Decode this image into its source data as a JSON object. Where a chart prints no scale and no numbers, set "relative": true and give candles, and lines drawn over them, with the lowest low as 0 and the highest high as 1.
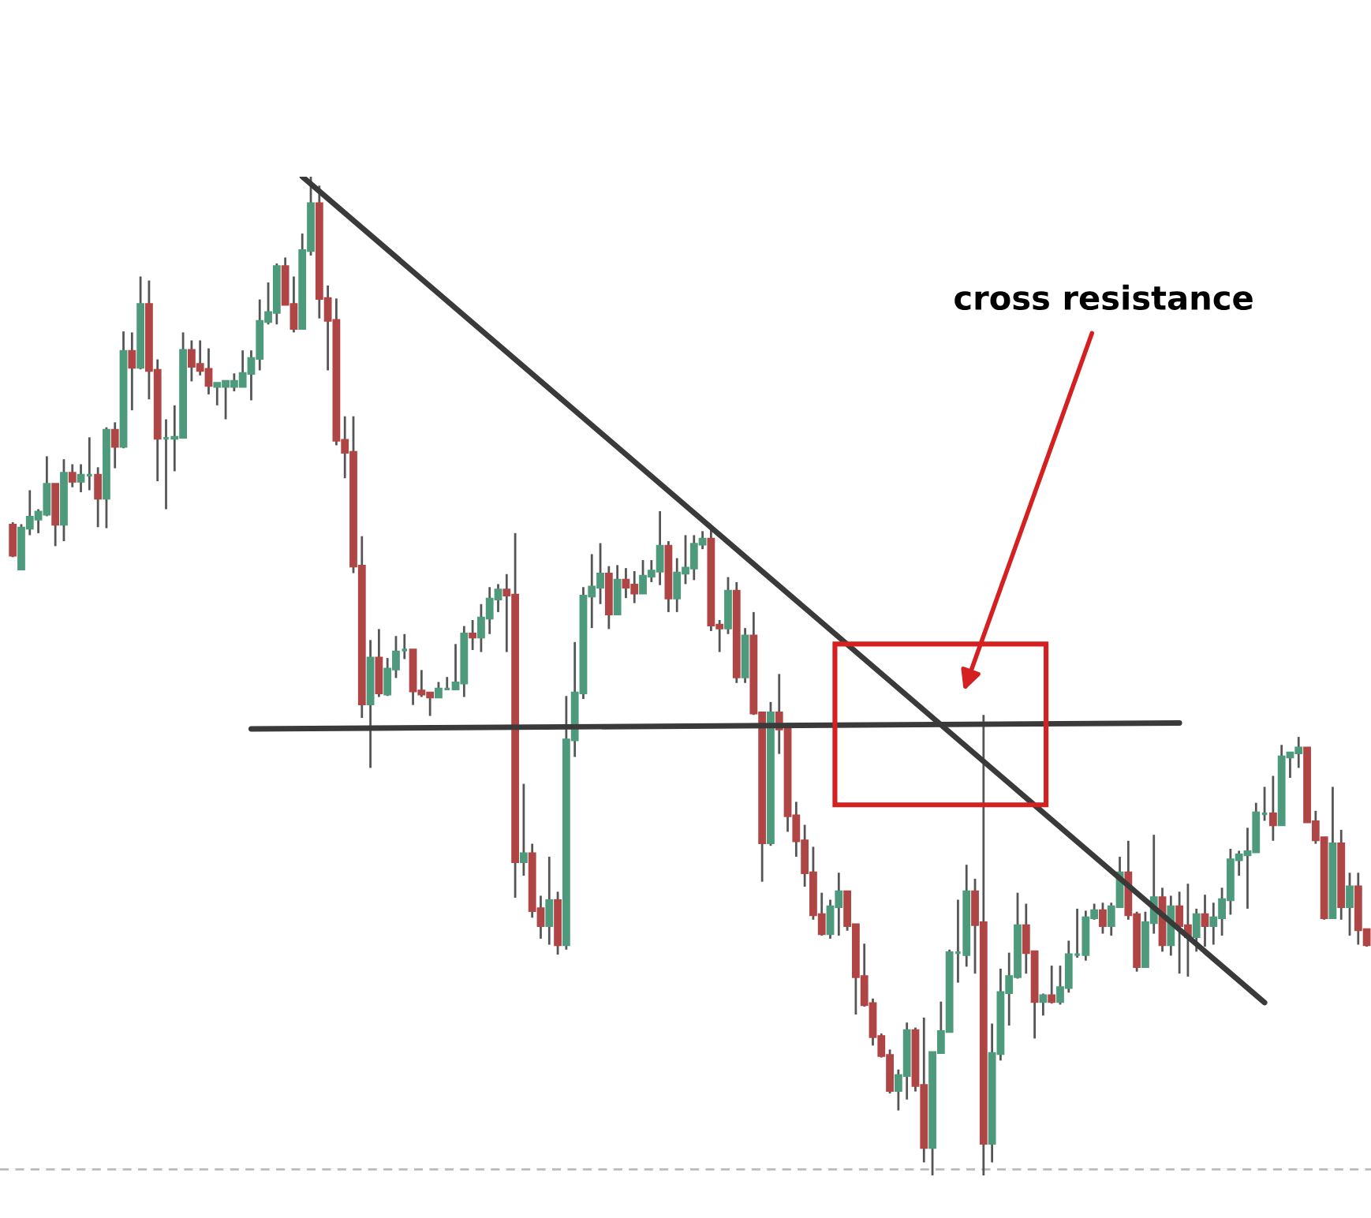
{
  "chart_data": {
    "type": "candlestick",
    "relative": true,
    "colors": [
      "#b04545",
      "#4e9a7c",
      "#4e9a7c",
      "#4e9a7c",
      "#4e9a7c",
      "#b04545",
      "#4e9a7c",
      "#b04545",
      "#4e9a7c",
      "#4e9a7c",
      "#b04545",
      "#4e9a7c",
      "#b04545",
      "#4e9a7c",
      "#b04545",
      "#4e9a7c",
      "#b04545",
      "#b04545",
      "#4e9a7c",
      "#4e9a7c",
      "#4e9a7c",
      "#b04545",
      "#b04545",
      "#b04545",
      "#4e9a7c",
      "#4e9a7c",
      "#4e9a7c",
      "#4e9a7c",
      "#4e9a7c",
      "#4e9a7c",
      "#4e9a7c",
      "#4e9a7c",
      "#b04545",
      "#b04545",
      "#4e9a7c",
      "#4e9a7c",
      "#b04545",
      "#b04545",
      "#b04545",
      "#b04545",
      "#b04545",
      "#b04545",
      "#4e9a7c",
      "#b04545",
      "#4e9a7c",
      "#4e9a7c",
      "#4e9a7c",
      "#b04545",
      "#b04545",
      "#b04545",
      "#4e9a7c",
      "#4e9a7c",
      "#4e9a7c",
      "#4e9a7c",
      "#b04545",
      "#4e9a7c",
      "#4e9a7c",
      "#4e9a7c",
      "#b04545",
      "#b04545",
      "#4e9a7c",
      "#b04545",
      "#b04545",
      "#4e9a7c",
      "#b04545",
      "#4e9a7c",
      "#4e9a7c",
      "#4e9a7c",
      "#4e9a7c",
      "#4e9a7c",
      "#b04545",
      "#4e9a7c",
      "#b04545",
      "#b04545",
      "#4e9a7c",
      "#4e9a7c",
      "#4e9a7c",
      "#b04545",
      "#4e9a7c",
      "#4e9a7c",
      "#4e9a7c",
      "#4e9a7c",
      "#b04545",
      "#b04545",
      "#4e9a7c",
      "#b04545",
      "#4e9a7c",
      "#b04545",
      "#b04545",
      "#4e9a7c",
      "#b04545",
      "#b04545",
      "#b04545",
      "#b04545",
      "#b04545",
      "#b04545",
      "#4e9a7c",
      "#4e9a7c",
      "#b04545",
      "#b04545",
      "#b04545",
      "#b04545",
      "#b04545",
      "#b04545",
      "#4e9a7c",
      "#4e9a7c",
      "#b04545",
      "#b04545",
      "#4e9a7c",
      "#4e9a7c",
      "#4e9a7c",
      "#4e9a7c",
      "#4e9a7c",
      "#b04545",
      "#b04545",
      "#4e9a7c",
      "#4e9a7c",
      "#4e9a7c",
      "#4e9a7c",
      "#b04545",
      "#b04545",
      "#4e9a7c",
      "#b04545",
      "#4e9a7c",
      "#4e9a7c",
      "#4e9a7c",
      "#4e9a7c",
      "#4e9a7c",
      "#b04545",
      "#4e9a7c",
      "#4e9a7c",
      "#b04545",
      "#b04545",
      "#4e9a7c",
      "#4e9a7c",
      "#b04545",
      "#4e9a7c",
      "#b04545",
      "#b04545",
      "#4e9a7c",
      "#b04545",
      "#4e9a7c",
      "#4e9a7c",
      "#4e9a7c",
      "#4e9a7c",
      "#4e9a7c",
      "#4e9a7c",
      "#4e9a7c",
      "#b04545",
      "#4e9a7c",
      "#4e9a7c",
      "#4e9a7c",
      "#b04545",
      "#b04545",
      "#b04545",
      "#4e9a7c",
      "#b04545",
      "#4e9a7c",
      "#b04545",
      "#b04545"
    ],
    "categories": [
      null,
      null,
      null,
      null,
      null,
      null,
      null,
      null,
      null,
      null,
      null,
      null,
      null,
      null,
      null,
      null,
      null,
      null,
      null,
      null,
      null,
      null,
      null,
      null,
      null,
      null,
      null,
      null,
      null,
      null,
      null,
      null,
      null,
      null,
      null,
      null,
      null,
      null,
      null,
      null,
      null,
      null,
      null,
      null,
      null,
      null,
      null,
      null,
      null,
      null,
      null,
      null,
      null,
      null,
      null,
      null,
      null,
      null,
      null,
      null,
      null,
      null,
      null,
      null,
      null,
      null,
      null,
      null,
      null,
      null,
      null,
      null,
      null,
      null,
      null,
      null,
      null,
      null,
      null,
      null,
      null,
      null,
      null,
      null,
      null,
      null,
      null,
      null,
      null,
      null,
      null,
      null,
      null,
      null,
      null,
      null,
      null,
      null,
      null,
      null,
      null,
      null,
      null,
      null,
      null,
      null,
      null,
      null,
      null,
      null,
      null,
      null,
      null,
      null,
      null,
      null,
      null,
      null,
      null,
      null,
      null,
      null,
      null,
      null,
      null,
      null,
      null,
      null,
      null,
      null,
      null,
      null,
      null,
      null,
      null,
      null,
      null,
      null,
      null,
      null,
      null,
      null,
      null,
      null,
      null,
      null,
      null,
      null,
      null,
      null,
      null,
      null,
      null,
      null,
      null,
      null,
      null,
      null,
      null,
      null
    ],
    "ohlc": [
      [
        0.651,
        0.654,
        0.619,
        0.621
      ],
      [
        0.607,
        0.652,
        0.607,
        0.648
      ],
      [
        0.648,
        0.686,
        0.641,
        0.659
      ],
      [
        0.657,
        0.667,
        0.643,
        0.664
      ],
      [
        0.662,
        0.72,
        0.66,
        0.692
      ],
      [
        0.692,
        0.692,
        0.63,
        0.652
      ],
      [
        0.652,
        0.717,
        0.635,
        0.703
      ],
      [
        0.703,
        0.712,
        0.689,
        0.695
      ],
      [
        0.695,
        0.712,
        0.684,
        0.701
      ],
      [
        0.701,
        0.739,
        0.686,
        0.701
      ],
      [
        0.701,
        0.709,
        0.649,
        0.678
      ],
      [
        0.678,
        0.749,
        0.648,
        0.746
      ],
      [
        0.746,
        0.754,
        0.708,
        0.73
      ],
      [
        0.73,
        0.845,
        0.728,
        0.825
      ],
      [
        0.825,
        0.844,
        0.766,
        0.809
      ],
      [
        0.809,
        0.9,
        0.807,
        0.872
      ],
      [
        0.872,
        0.896,
        0.777,
        0.806
      ],
      [
        0.806,
        0.817,
        0.695,
        0.738
      ],
      [
        0.738,
        0.757,
        0.667,
        0.738
      ],
      [
        0.738,
        0.771,
        0.705,
        0.739
      ],
      [
        0.739,
        0.844,
        0.739,
        0.826
      ],
      [
        0.826,
        0.836,
        0.795,
        0.81
      ],
      [
        0.812,
        0.836,
        0.801,
        0.806
      ],
      [
        0.807,
        0.828,
        0.782,
        0.791
      ],
      [
        0.79,
        0.793,
        0.771,
        0.793
      ],
      [
        0.79,
        0.795,
        0.757,
        0.795
      ],
      [
        0.79,
        0.803,
        0.785,
        0.795
      ],
      [
        0.79,
        0.826,
        0.79,
        0.803
      ],
      [
        0.803,
        0.826,
        0.776,
        0.818
      ],
      [
        0.818,
        0.877,
        0.806,
        0.855
      ],
      [
        0.855,
        0.894,
        0.852,
        0.864
      ],
      [
        0.864,
        0.913,
        0.852,
        0.91
      ],
      [
        0.91,
        0.919,
        0.872,
        0.872
      ],
      [
        0.872,
        0.9,
        0.844,
        0.848
      ],
      [
        0.848,
        0.943,
        0.848,
        0.926
      ],
      [
        0.926,
        1.0,
        0.921,
        0.973
      ],
      [
        0.973,
        0.991,
        0.858,
        0.878
      ],
      [
        0.878,
        0.891,
        0.806,
        0.856
      ],
      [
        0.856,
        0.878,
        0.731,
        0.736
      ],
      [
        0.736,
        0.76,
        0.698,
        0.724
      ],
      [
        0.724,
        0.76,
        0.603,
        0.61
      ],
      [
        0.61,
        0.64,
        0.458,
        0.472
      ],
      [
        0.472,
        0.536,
        0.408,
        0.518
      ],
      [
        0.518,
        0.547,
        0.479,
        0.483
      ],
      [
        0.482,
        0.518,
        0.48,
        0.507
      ],
      [
        0.507,
        0.54,
        0.498,
        0.524
      ],
      [
        0.526,
        0.542,
        0.517,
        0.526
      ],
      [
        0.526,
        0.526,
        0.471,
        0.485
      ],
      [
        0.485,
        0.506,
        0.479,
        0.482
      ],
      [
        0.483,
        0.483,
        0.46,
        0.479
      ],
      [
        0.479,
        0.494,
        0.479,
        0.487
      ],
      [
        0.487,
        0.499,
        0.487,
        0.487
      ],
      [
        0.487,
        0.532,
        0.487,
        0.493
      ],
      [
        0.493,
        0.55,
        0.479,
        0.542
      ],
      [
        0.542,
        0.556,
        0.526,
        0.539
      ],
      [
        0.539,
        0.572,
        0.524,
        0.558
      ],
      [
        0.558,
        0.589,
        0.542,
        0.577
      ],
      [
        0.577,
        0.592,
        0.564,
        0.586
      ],
      [
        0.586,
        0.602,
        0.524,
        0.581
      ],
      [
        0.581,
        0.643,
        0.278,
        0.314
      ],
      [
        0.314,
        0.392,
        0.3,
        0.322
      ],
      [
        0.322,
        0.332,
        0.258,
        0.265
      ],
      [
        0.267,
        0.28,
        0.237,
        0.25
      ],
      [
        0.25,
        0.319,
        0.231,
        0.275
      ],
      [
        0.275,
        0.284,
        0.221,
        0.231
      ],
      [
        0.231,
        0.48,
        0.226,
        0.436
      ],
      [
        0.436,
        0.534,
        0.419,
        0.483
      ],
      [
        0.483,
        0.589,
        0.477,
        0.58
      ],
      [
        0.58,
        0.622,
        0.548,
        0.589
      ],
      [
        0.589,
        0.633,
        0.572,
        0.602
      ],
      [
        0.602,
        0.61,
        0.547,
        0.562
      ],
      [
        0.562,
        0.611,
        0.562,
        0.596
      ],
      [
        0.596,
        0.608,
        0.578,
        0.589
      ],
      [
        0.591,
        0.605,
        0.573,
        0.583
      ],
      [
        0.583,
        0.616,
        0.583,
        0.6
      ],
      [
        0.6,
        0.616,
        0.594,
        0.605
      ],
      [
        0.605,
        0.665,
        0.591,
        0.63
      ],
      [
        0.63,
        0.635,
        0.564,
        0.578
      ],
      [
        0.578,
        0.618,
        0.564,
        0.603
      ],
      [
        0.603,
        0.641,
        0.592,
        0.608
      ],
      [
        0.608,
        0.641,
        0.596,
        0.632
      ],
      [
        0.632,
        0.645,
        0.627,
        0.637
      ],
      [
        0.637,
        0.648,
        0.545,
        0.551
      ],
      [
        0.551,
        0.556,
        0.524,
        0.548
      ],
      [
        0.548,
        0.599,
        0.542,
        0.585
      ],
      [
        0.585,
        0.594,
        0.493,
        0.499
      ],
      [
        0.499,
        0.548,
        0.493,
        0.54
      ],
      [
        0.54,
        0.564,
        0.461,
        0.463
      ],
      [
        0.463,
        0.463,
        0.294,
        0.333
      ],
      [
        0.333,
        0.474,
        0.33,
        0.463
      ],
      [
        0.463,
        0.502,
        0.422,
        0.447
      ],
      [
        0.447,
        0.453,
        0.344,
        0.36
      ],
      [
        0.36,
        0.374,
        0.319,
        0.335
      ],
      [
        0.335,
        0.351,
        0.289,
        0.303
      ],
      [
        0.303,
        0.329,
        0.256,
        0.261
      ],
      [
        0.261,
        0.283,
        0.24,
        0.242
      ],
      [
        0.242,
        0.276,
        0.237,
        0.269
      ],
      [
        0.269,
        0.303,
        0.24,
        0.284
      ],
      [
        0.284,
        0.284,
        0.245,
        0.25
      ],
      [
        0.251,
        0.251,
        0.161,
        0.199
      ],
      [
        0.199,
        0.232,
        0.169,
        0.171
      ],
      [
        0.172,
        0.177,
        0.13,
        0.139
      ],
      [
        0.139,
        0.142,
        0.118,
        0.12
      ],
      [
        0.12,
        0.126,
        0.082,
        0.085
      ],
      [
        0.085,
        0.106,
        0.065,
        0.1
      ],
      [
        0.1,
        0.153,
        0.076,
        0.145
      ],
      [
        0.145,
        0.148,
        0.084,
        0.09
      ],
      [
        0.09,
        0.158,
        0.013,
        0.028
      ],
      [
        0.028,
        0.123,
        0.0,
        0.123
      ],
      [
        0.123,
        0.174,
        0.122,
        0.144
      ],
      [
        0.144,
        0.226,
        0.144,
        0.223
      ],
      [
        0.223,
        0.276,
        0.193,
        0.223
      ],
      [
        0.221,
        0.311,
        0.209,
        0.284
      ],
      [
        0.284,
        0.297,
        0.202,
        0.251
      ],
      [
        0.253,
        0.461,
        0.0,
        0.032
      ],
      [
        0.032,
        0.152,
        0.013,
        0.122
      ],
      [
        0.122,
        0.207,
        0.115,
        0.183
      ],
      [
        0.183,
        0.223,
        0.15,
        0.199
      ],
      [
        0.199,
        0.283,
        0.197,
        0.25
      ],
      [
        0.25,
        0.272,
        0.202,
        0.223
      ],
      [
        0.224,
        0.224,
        0.137,
        0.174
      ],
      [
        0.174,
        0.182,
        0.16,
        0.18
      ],
      [
        0.18,
        0.21,
        0.172,
        0.174
      ],
      [
        0.174,
        0.21,
        0.171,
        0.188
      ],
      [
        0.188,
        0.235,
        0.183,
        0.221
      ],
      [
        0.221,
        0.267,
        0.218,
        0.221
      ],
      [
        0.221,
        0.265,
        0.215,
        0.258
      ],
      [
        0.258,
        0.272,
        0.256,
        0.265
      ],
      [
        0.265,
        0.273,
        0.242,
        0.25
      ],
      [
        0.25,
        0.273,
        0.24,
        0.269
      ],
      [
        0.269,
        0.319,
        0.269,
        0.303
      ],
      [
        0.303,
        0.335,
        0.256,
        0.261
      ],
      [
        0.261,
        0.264,
        0.204,
        0.209
      ],
      [
        0.209,
        0.264,
        0.209,
        0.253
      ],
      [
        0.253,
        0.341,
        0.242,
        0.278
      ],
      [
        0.278,
        0.288,
        0.224,
        0.231
      ],
      [
        0.231,
        0.28,
        0.22,
        0.269
      ],
      [
        0.269,
        0.284,
        0.202,
        0.25
      ],
      [
        0.25,
        0.292,
        0.199,
        0.239
      ],
      [
        0.239,
        0.267,
        0.224,
        0.261
      ],
      [
        0.261,
        0.281,
        0.229,
        0.25
      ],
      [
        0.25,
        0.273,
        0.231,
        0.258
      ],
      [
        0.258,
        0.288,
        0.24,
        0.276
      ],
      [
        0.276,
        0.327,
        0.261,
        0.316
      ],
      [
        0.316,
        0.325,
        0.3,
        0.321
      ],
      [
        0.321,
        0.348,
        0.267,
        0.324
      ],
      [
        0.324,
        0.373,
        0.324,
        0.363
      ],
      [
        0.362,
        0.389,
        0.355,
        0.362
      ],
      [
        0.362,
        0.4,
        0.335,
        0.351
      ],
      [
        0.351,
        0.431,
        0.351,
        0.419
      ],
      [
        0.419,
        0.423,
        0.398,
        0.423
      ],
      [
        0.423,
        0.439,
        0.408,
        0.428
      ],
      [
        0.428,
        0.428,
        0.354,
        0.354
      ],
      [
        0.354,
        0.365,
        0.332,
        0.336
      ],
      [
        0.338,
        0.338,
        0.256,
        0.258
      ],
      [
        0.258,
        0.389,
        0.258,
        0.332
      ],
      [
        0.332,
        0.346,
        0.256,
        0.269
      ],
      [
        0.269,
        0.303,
        0.24,
        0.289
      ],
      [
        0.289,
        0.303,
        0.231,
        0.246
      ],
      [
        0.246,
        0.246,
        0.229,
        0.231
      ]
    ],
    "series": [
      {
        "type": "line",
        "color": "#3a3a3a",
        "values": [
          null,
          null,
          null,
          null,
          null,
          null,
          null,
          null,
          null,
          null,
          null,
          null,
          null,
          null,
          null,
          null,
          null,
          null,
          null,
          null,
          null,
          null,
          null,
          null,
          null,
          null,
          null,
          null,
          null,
          null,
          null,
          null,
          null,
          null,
          1.0,
          null,
          null,
          null,
          null,
          null,
          null,
          null,
          null,
          null,
          null,
          null,
          null,
          null,
          null,
          null,
          null,
          null,
          null,
          null,
          null,
          null,
          null,
          null,
          null,
          null,
          null,
          null,
          null,
          null,
          null,
          null,
          null,
          null,
          null,
          null,
          null,
          null,
          null,
          null,
          null,
          null,
          null,
          null,
          null,
          null,
          null,
          null,
          null,
          null,
          null,
          null,
          null,
          null,
          null,
          null,
          null,
          null,
          null,
          null,
          null,
          null,
          null,
          null,
          null,
          null,
          null,
          null,
          null,
          null,
          null,
          null,
          null,
          null,
          null,
          null,
          null,
          null,
          null,
          null,
          null,
          null,
          null,
          null,
          null,
          null,
          null,
          null,
          null,
          null,
          null,
          null,
          null,
          null,
          null,
          null,
          null,
          null,
          null,
          null,
          null,
          null,
          null,
          null,
          null,
          null,
          null,
          null,
          null,
          null,
          null,
          null,
          null,
          0.173,
          null,
          null,
          null,
          null,
          null,
          null,
          null,
          null,
          null,
          null,
          null,
          null
        ]
      },
      {
        "type": "line",
        "color": "#3a3a3a",
        "values": [
          null,
          null,
          null,
          null,
          null,
          null,
          null,
          null,
          null,
          null,
          null,
          null,
          null,
          null,
          null,
          null,
          null,
          null,
          null,
          null,
          null,
          null,
          null,
          null,
          null,
          null,
          null,
          null,
          0.447,
          null,
          null,
          null,
          null,
          null,
          null,
          null,
          null,
          null,
          null,
          null,
          null,
          null,
          null,
          null,
          null,
          null,
          null,
          null,
          null,
          null,
          null,
          null,
          null,
          null,
          null,
          null,
          null,
          null,
          null,
          null,
          null,
          null,
          null,
          null,
          null,
          null,
          null,
          null,
          null,
          null,
          null,
          null,
          null,
          null,
          null,
          null,
          null,
          null,
          null,
          null,
          null,
          null,
          null,
          null,
          null,
          null,
          null,
          null,
          null,
          null,
          null,
          null,
          null,
          null,
          null,
          null,
          null,
          null,
          null,
          null,
          null,
          null,
          null,
          null,
          null,
          null,
          null,
          null,
          null,
          null,
          null,
          null,
          null,
          null,
          null,
          null,
          null,
          null,
          null,
          null,
          null,
          null,
          null,
          null,
          null,
          null,
          null,
          null,
          null,
          null,
          null,
          null,
          null,
          null,
          null,
          null,
          null,
          0.453,
          null,
          null,
          null,
          null,
          null,
          null,
          null,
          null,
          null,
          null,
          null,
          null,
          null,
          null,
          null,
          null,
          null,
          null,
          null,
          null,
          null,
          null
        ]
      }
    ],
    "ref_lines": [
      {
        "axis": "y",
        "value": 0.006,
        "color": "#bbbbbb",
        "line_style": "dashed"
      }
    ],
    "annotations": [
      "cross resistance"
    ]
  }
}
